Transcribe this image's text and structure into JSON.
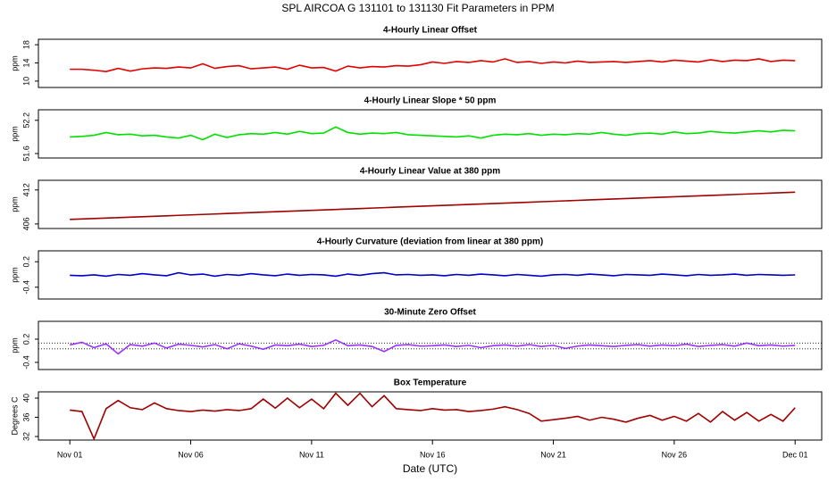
{
  "title": "SPL   AIRCOA G   131101 to 131130   Fit Parameters in PPM",
  "chart_data": [
    {
      "type": "line",
      "title": "4-Hourly Linear Offset",
      "ylabel": "ppm",
      "color": "#e00000",
      "ylim": [
        8.6,
        19.2
      ],
      "yticks": [
        10,
        14,
        18
      ],
      "xlim": [
        -1.3,
        31.1
      ],
      "x": [
        0,
        0.5,
        1,
        1.5,
        2,
        2.5,
        3,
        3.5,
        4,
        4.5,
        5,
        5.5,
        6,
        6.5,
        7,
        7.5,
        8,
        8.5,
        9,
        9.5,
        10,
        10.5,
        11,
        11.5,
        12,
        12.5,
        13,
        13.5,
        14,
        14.5,
        15,
        15.5,
        16,
        16.5,
        17,
        17.5,
        18,
        18.5,
        19,
        19.5,
        20,
        20.5,
        21,
        21.5,
        22,
        22.5,
        23,
        23.5,
        24,
        24.5,
        25,
        25.5,
        26,
        26.5,
        27,
        27.5,
        28,
        28.5,
        29,
        29.5,
        30
      ],
      "values": [
        12.6,
        12.6,
        12.4,
        12.1,
        12.8,
        12.2,
        12.7,
        12.9,
        12.8,
        13.1,
        12.9,
        13.8,
        12.8,
        13.2,
        13.4,
        12.7,
        12.9,
        13.1,
        12.6,
        13.5,
        12.9,
        13.0,
        12.2,
        13.3,
        12.9,
        13.2,
        13.1,
        13.4,
        13.3,
        13.6,
        14.2,
        13.9,
        14.3,
        14.1,
        14.5,
        14.2,
        14.9,
        14.1,
        14.3,
        13.9,
        14.2,
        14.0,
        14.4,
        14.1,
        14.2,
        14.3,
        14.1,
        14.3,
        14.5,
        14.2,
        14.6,
        14.4,
        14.2,
        14.7,
        14.3,
        14.6,
        14.5,
        14.9,
        14.3,
        14.6,
        14.5
      ]
    },
    {
      "type": "line",
      "title": "4-Hourly Linear Slope * 50 ppm",
      "ylabel": "ppm",
      "color": "#00e000",
      "ylim": [
        51.52,
        52.39
      ],
      "yticks": [
        51.6,
        52.2
      ],
      "xlim": [
        -1.3,
        31.1
      ],
      "x": [
        0,
        0.5,
        1,
        1.5,
        2,
        2.5,
        3,
        3.5,
        4,
        4.5,
        5,
        5.5,
        6,
        6.5,
        7,
        7.5,
        8,
        8.5,
        9,
        9.5,
        10,
        10.5,
        11,
        11.5,
        12,
        12.5,
        13,
        13.5,
        14,
        14.5,
        15,
        15.5,
        16,
        16.5,
        17,
        17.5,
        18,
        18.5,
        19,
        19.5,
        20,
        20.5,
        21,
        21.5,
        22,
        22.5,
        23,
        23.5,
        24,
        24.5,
        25,
        25.5,
        26,
        26.5,
        27,
        27.5,
        28,
        28.5,
        29,
        29.5,
        30
      ],
      "values": [
        51.9,
        51.91,
        51.93,
        51.98,
        51.94,
        51.95,
        51.92,
        51.93,
        51.9,
        51.88,
        51.93,
        51.85,
        51.95,
        51.89,
        51.94,
        51.96,
        51.95,
        51.98,
        51.95,
        52.0,
        51.96,
        51.97,
        52.08,
        51.98,
        51.95,
        51.97,
        51.96,
        51.98,
        51.94,
        51.93,
        51.92,
        51.91,
        51.9,
        51.92,
        51.88,
        51.93,
        51.95,
        51.94,
        51.96,
        51.93,
        51.95,
        51.94,
        51.96,
        51.95,
        51.98,
        51.95,
        51.93,
        51.96,
        51.97,
        51.95,
        51.99,
        51.96,
        51.97,
        52.0,
        51.98,
        51.97,
        51.99,
        52.01,
        51.99,
        52.02,
        52.01
      ]
    },
    {
      "type": "line",
      "title": "4-Hourly Linear Value at 380 ppm",
      "ylabel": "ppm",
      "color": "#a00000",
      "ylim": [
        405.2,
        413.7
      ],
      "yticks": [
        406,
        412
      ],
      "xlim": [
        -1.3,
        31.1
      ],
      "x": [
        0,
        0.5,
        1,
        1.5,
        2,
        2.5,
        3,
        3.5,
        4,
        4.5,
        5,
        5.5,
        6,
        6.5,
        7,
        7.5,
        8,
        8.5,
        9,
        9.5,
        10,
        10.5,
        11,
        11.5,
        12,
        12.5,
        13,
        13.5,
        14,
        14.5,
        15,
        15.5,
        16,
        16.5,
        17,
        17.5,
        18,
        18.5,
        19,
        19.5,
        20,
        20.5,
        21,
        21.5,
        22,
        22.5,
        23,
        23.5,
        24,
        24.5,
        25,
        25.5,
        26,
        26.5,
        27,
        27.5,
        28,
        28.5,
        29,
        29.5,
        30
      ],
      "values": [
        406.8,
        406.88,
        406.96,
        407.04,
        407.12,
        407.2,
        407.28,
        407.36,
        407.44,
        407.52,
        407.6,
        407.68,
        407.76,
        407.84,
        407.92,
        408,
        408.08,
        408.16,
        408.24,
        408.32,
        408.4,
        408.48,
        408.56,
        408.64,
        408.72,
        408.8,
        408.88,
        408.96,
        409.04,
        409.12,
        409.2,
        409.28,
        409.36,
        409.44,
        409.52,
        409.6,
        409.68,
        409.76,
        409.84,
        409.92,
        410,
        410.08,
        410.16,
        410.24,
        410.32,
        410.4,
        410.48,
        410.56,
        410.64,
        410.72,
        410.8,
        410.88,
        410.96,
        411.04,
        411.12,
        411.2,
        411.28,
        411.36,
        411.44,
        411.52,
        411.6
      ]
    },
    {
      "type": "line",
      "title": "4-Hourly Curvature (deviation from linear at 380 ppm)",
      "ylabel": "ppm",
      "color": "#0000c8",
      "ylim": [
        -0.678,
        0.457
      ],
      "yticks": [
        -0.4,
        0.2
      ],
      "xlim": [
        -1.3,
        31.1
      ],
      "x": [
        0,
        0.5,
        1,
        1.5,
        2,
        2.5,
        3,
        3.5,
        4,
        4.5,
        5,
        5.5,
        6,
        6.5,
        7,
        7.5,
        8,
        8.5,
        9,
        9.5,
        10,
        10.5,
        11,
        11.5,
        12,
        12.5,
        13,
        13.5,
        14,
        14.5,
        15,
        15.5,
        16,
        16.5,
        17,
        17.5,
        18,
        18.5,
        19,
        19.5,
        20,
        20.5,
        21,
        21.5,
        22,
        22.5,
        23,
        23.5,
        24,
        24.5,
        25,
        25.5,
        26,
        26.5,
        27,
        27.5,
        28,
        28.5,
        29,
        29.5,
        30
      ],
      "values": [
        -0.12,
        -0.13,
        -0.11,
        -0.14,
        -0.1,
        -0.12,
        -0.08,
        -0.11,
        -0.13,
        -0.06,
        -0.11,
        -0.09,
        -0.14,
        -0.1,
        -0.12,
        -0.08,
        -0.11,
        -0.13,
        -0.09,
        -0.12,
        -0.1,
        -0.11,
        -0.14,
        -0.09,
        -0.12,
        -0.08,
        -0.06,
        -0.11,
        -0.1,
        -0.12,
        -0.11,
        -0.13,
        -0.1,
        -0.12,
        -0.09,
        -0.11,
        -0.13,
        -0.1,
        -0.12,
        -0.14,
        -0.11,
        -0.1,
        -0.12,
        -0.09,
        -0.11,
        -0.13,
        -0.1,
        -0.11,
        -0.12,
        -0.09,
        -0.11,
        -0.13,
        -0.1,
        -0.12,
        -0.11,
        -0.09,
        -0.12,
        -0.1,
        -0.11,
        -0.12,
        -0.11
      ]
    },
    {
      "type": "line",
      "title": "30-Minute Zero Offset",
      "ylabel": "ppm",
      "color": "#9933ff",
      "ylim": [
        -0.585,
        0.66
      ],
      "yticks": [
        -0.4,
        0.2
      ],
      "xlim": [
        -1.3,
        31.1
      ],
      "hlines": [
        0.1,
        -0.05
      ],
      "x": [
        0,
        0.5,
        1,
        1.5,
        2,
        2.5,
        3,
        3.5,
        4,
        4.5,
        5,
        5.5,
        6,
        6.5,
        7,
        7.5,
        8,
        8.5,
        9,
        9.5,
        10,
        10.5,
        11,
        11.5,
        12,
        12.5,
        13,
        13.5,
        14,
        14.5,
        15,
        15.5,
        16,
        16.5,
        17,
        17.5,
        18,
        18.5,
        19,
        19.5,
        20,
        20.5,
        21,
        21.5,
        22,
        22.5,
        23,
        23.5,
        24,
        24.5,
        25,
        25.5,
        26,
        26.5,
        27,
        27.5,
        28,
        28.5,
        29,
        29.5,
        30
      ],
      "values": [
        0.05,
        0.12,
        -0.02,
        0.08,
        -0.18,
        0.06,
        0.02,
        0.1,
        -0.03,
        0.07,
        0.04,
        0.0,
        0.06,
        -0.05,
        0.08,
        0.02,
        -0.06,
        0.05,
        0.03,
        0.07,
        0.01,
        0.04,
        0.18,
        0.03,
        0.05,
        0.01,
        -0.12,
        0.04,
        0.06,
        0.02,
        0.03,
        0.05,
        0.01,
        0.04,
        -0.02,
        0.03,
        0.05,
        0.02,
        0.06,
        0.01,
        0.04,
        -0.04,
        0.02,
        0.05,
        0.03,
        0.01,
        0.04,
        0.06,
        0.02,
        0.05,
        0.03,
        0.07,
        0.01,
        0.04,
        0.06,
        0.02,
        0.1,
        0.03,
        0.05,
        0.02,
        0.04
      ]
    },
    {
      "type": "line",
      "title": "Box Temperature",
      "ylabel": "Degrees C",
      "color": "#a00000",
      "ylim": [
        31.26,
        41.3
      ],
      "yticks": [
        32,
        36,
        40
      ],
      "xlim": [
        -1.3,
        31.1
      ],
      "xlabel": "Date (UTC)",
      "xticks": [
        {
          "value": 0,
          "label": "Nov 01"
        },
        {
          "value": 5,
          "label": "Nov 06"
        },
        {
          "value": 10,
          "label": "Nov 11"
        },
        {
          "value": 15,
          "label": "Nov 16"
        },
        {
          "value": 20,
          "label": "Nov 21"
        },
        {
          "value": 25,
          "label": "Nov 26"
        },
        {
          "value": 30,
          "label": "Dec 01"
        }
      ],
      "x": [
        0,
        0.5,
        1,
        1.5,
        2,
        2.5,
        3,
        3.5,
        4,
        4.5,
        5,
        5.5,
        6,
        6.5,
        7,
        7.5,
        8,
        8.5,
        9,
        9.5,
        10,
        10.5,
        11,
        11.5,
        12,
        12.5,
        13,
        13.5,
        14,
        14.5,
        15,
        15.5,
        16,
        16.5,
        17,
        17.5,
        18,
        18.5,
        19,
        19.5,
        20,
        20.5,
        21,
        21.5,
        22,
        22.5,
        23,
        23.5,
        24,
        24.5,
        25,
        25.5,
        26,
        26.5,
        27,
        27.5,
        28,
        28.5,
        29,
        29.5,
        30
      ],
      "values": [
        37.5,
        37.2,
        31.5,
        37.8,
        39.5,
        38.0,
        37.6,
        39.0,
        37.8,
        37.4,
        37.2,
        37.5,
        37.3,
        37.6,
        37.4,
        37.8,
        39.8,
        37.9,
        40.0,
        38.0,
        39.8,
        37.8,
        41.0,
        38.5,
        41.0,
        38.2,
        40.5,
        37.8,
        37.6,
        37.4,
        37.8,
        37.5,
        37.6,
        37.2,
        37.4,
        37.7,
        38.2,
        37.6,
        36.8,
        35.2,
        35.5,
        35.8,
        36.2,
        35.4,
        36.0,
        35.6,
        35.0,
        35.8,
        36.4,
        35.4,
        36.2,
        35.2,
        36.8,
        35.0,
        37.2,
        35.4,
        37.0,
        35.2,
        36.6,
        35.2,
        38.0
      ]
    }
  ]
}
